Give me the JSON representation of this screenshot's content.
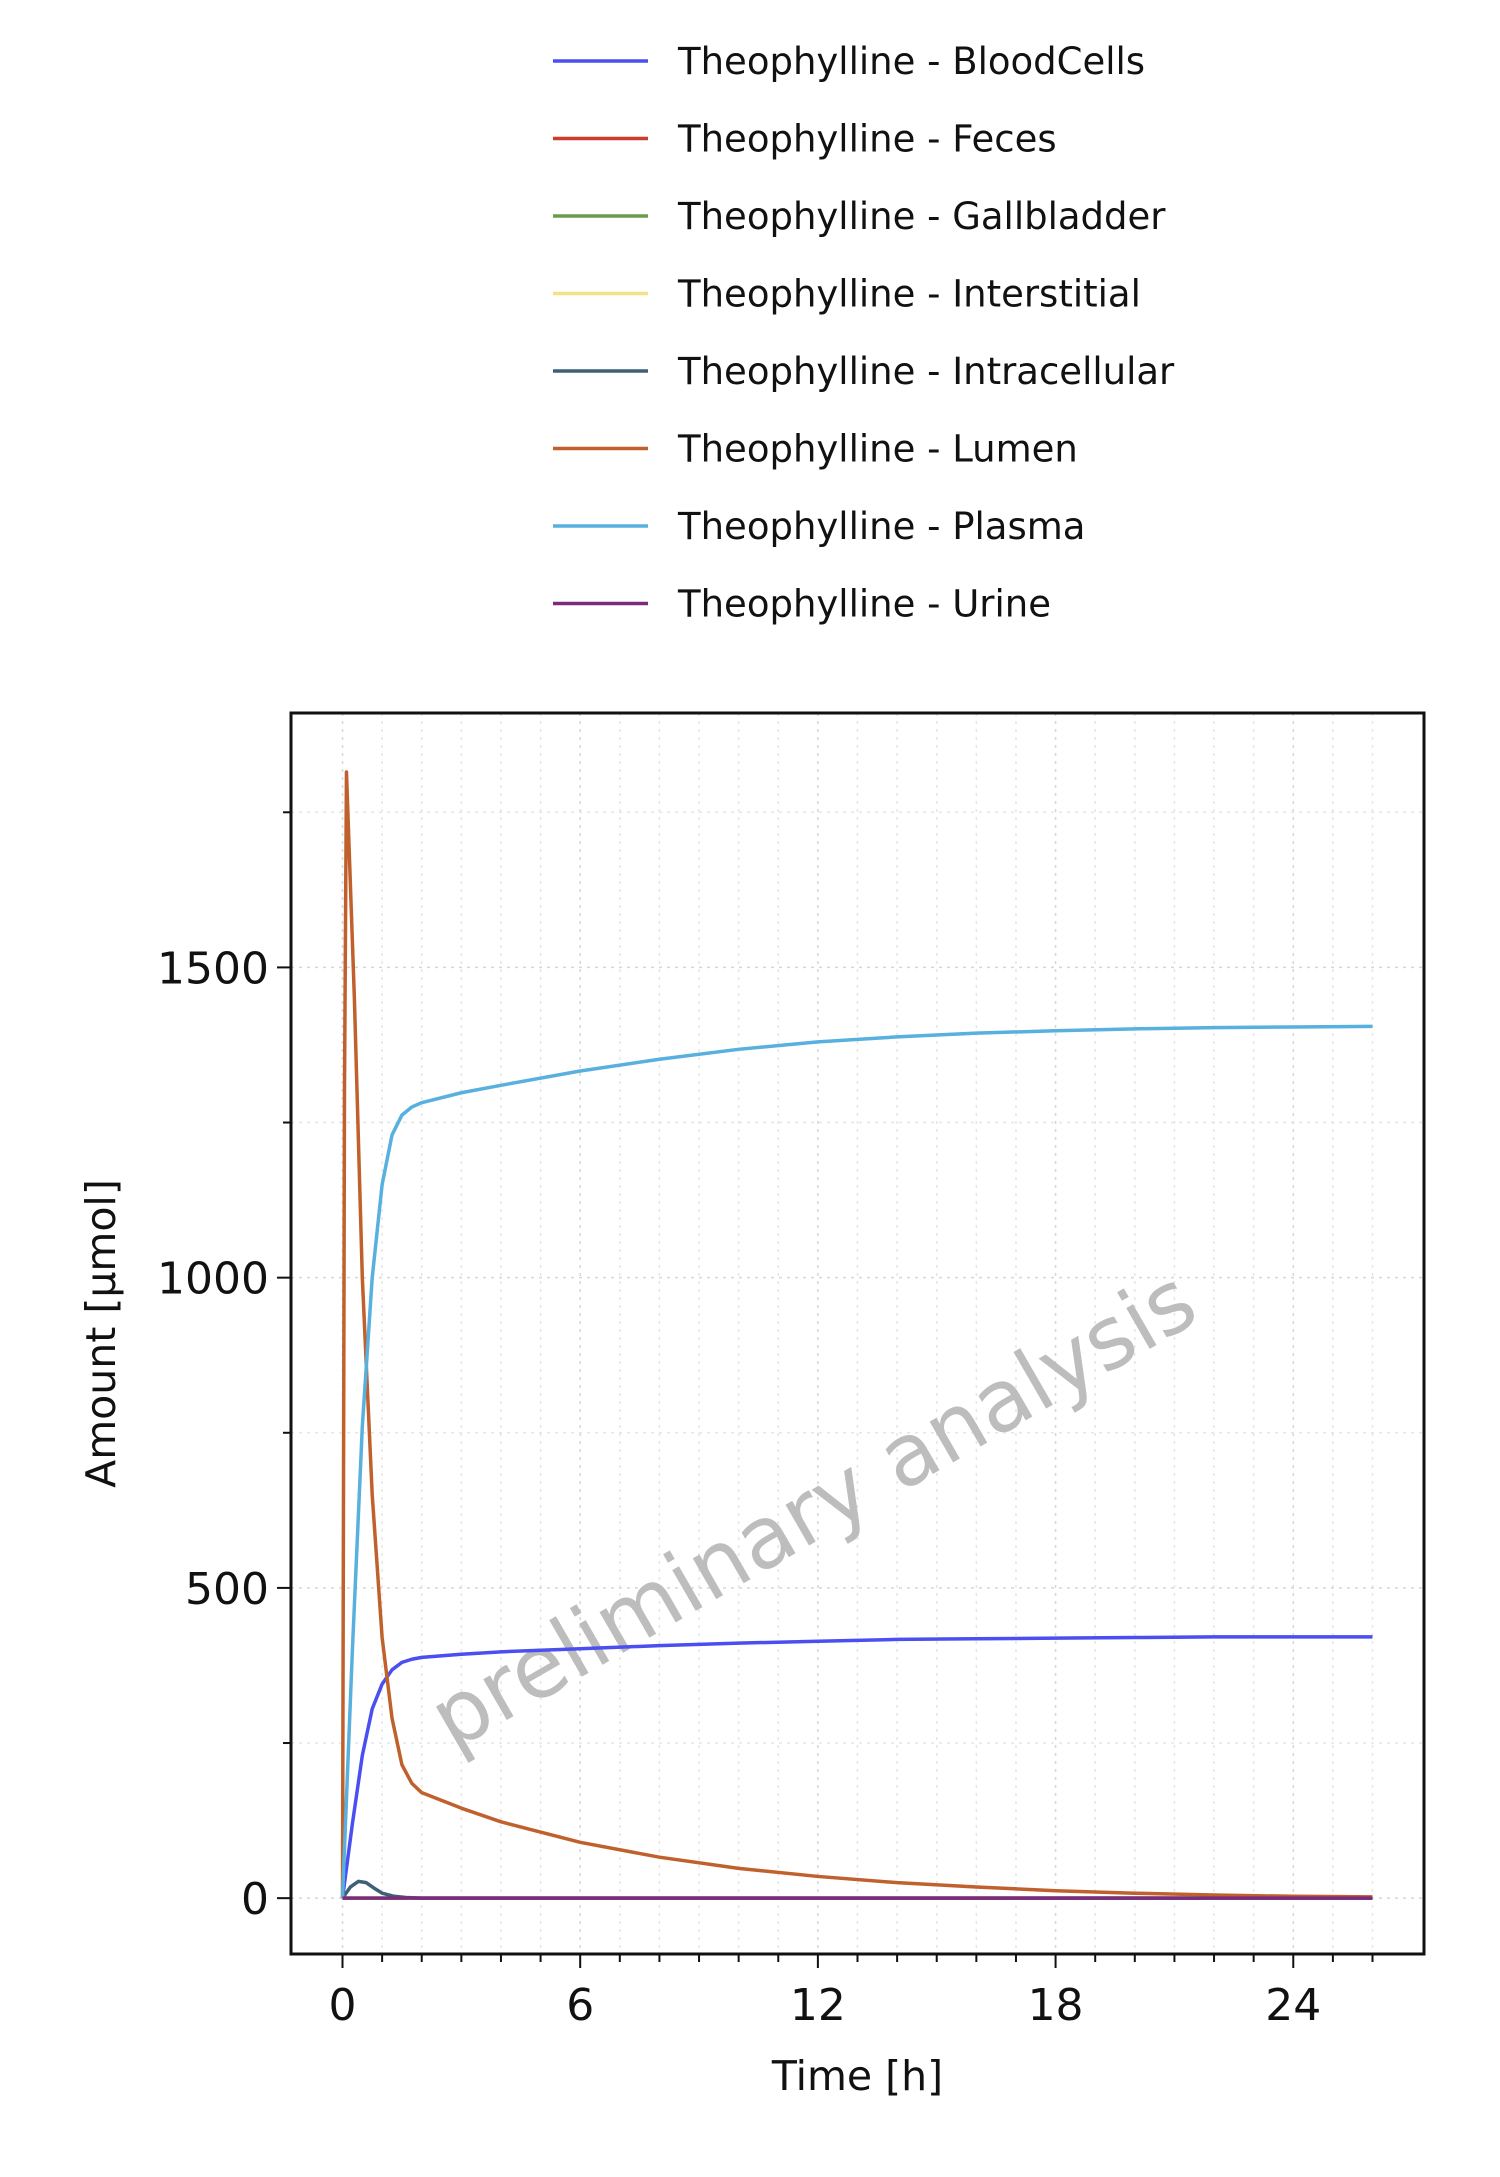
{
  "chart_data": {
    "type": "line",
    "title": "",
    "xlabel": "Time [h]",
    "ylabel": "Amount [µmol]",
    "xlim": [
      -1.3,
      27.3
    ],
    "ylim": [
      -90,
      1910
    ],
    "xticks": [
      0,
      6,
      12,
      18,
      24
    ],
    "yticks": [
      0,
      500,
      1000,
      1500
    ],
    "grid": true,
    "legend_position": "top",
    "watermark": "preliminary analysis",
    "series": [
      {
        "name": "Theophylline - BloodCells",
        "color": "#4b4ef0",
        "x": [
          0,
          0.25,
          0.5,
          0.75,
          1,
          1.25,
          1.5,
          1.75,
          2,
          3,
          4,
          6,
          8,
          10,
          12,
          14,
          16,
          18,
          20,
          22,
          24,
          26
        ],
        "y": [
          0,
          120,
          230,
          305,
          345,
          368,
          380,
          385,
          388,
          393,
          397,
          402,
          407,
          411,
          414,
          417,
          418,
          419,
          420,
          421,
          421,
          421
        ]
      },
      {
        "name": "Theophylline - Feces",
        "color": "#cc3d2e",
        "x": [
          0,
          6,
          12,
          18,
          24,
          26
        ],
        "y": [
          0,
          0,
          0,
          0,
          0,
          0
        ]
      },
      {
        "name": "Theophylline - Gallbladder",
        "color": "#6c9b4e",
        "x": [
          0,
          6,
          12,
          18,
          24,
          26
        ],
        "y": [
          0,
          0,
          0,
          0,
          0,
          0
        ]
      },
      {
        "name": "Theophylline - Interstitial",
        "color": "#f2e285",
        "x": [
          0,
          6,
          12,
          18,
          24,
          26
        ],
        "y": [
          0,
          0,
          0,
          0,
          0,
          0
        ]
      },
      {
        "name": "Theophylline - Intracellular",
        "color": "#3e6075",
        "x": [
          0,
          0.2,
          0.4,
          0.6,
          0.8,
          1.0,
          1.3,
          1.6,
          2,
          3,
          6,
          12,
          18,
          24,
          26
        ],
        "y": [
          0,
          18,
          27,
          25,
          16,
          8,
          3,
          1,
          0,
          0,
          0,
          0,
          0,
          0,
          0
        ]
      },
      {
        "name": "Theophylline - Lumen",
        "color": "#c0612d",
        "x": [
          0,
          0.05,
          0.1,
          0.3,
          0.5,
          0.75,
          1,
          1.25,
          1.5,
          1.75,
          2,
          3,
          4,
          6,
          8,
          10,
          12,
          14,
          16,
          18,
          20,
          22,
          24,
          26
        ],
        "y": [
          0,
          1300,
          1815,
          1450,
          1000,
          650,
          420,
          290,
          215,
          185,
          170,
          145,
          123,
          90,
          66,
          48,
          35,
          25,
          18,
          12,
          8,
          5,
          3,
          2
        ]
      },
      {
        "name": "Theophylline - Plasma",
        "color": "#58b0de",
        "x": [
          0,
          0.25,
          0.5,
          0.75,
          1,
          1.25,
          1.5,
          1.75,
          2,
          3,
          4,
          6,
          8,
          10,
          12,
          14,
          16,
          18,
          20,
          22,
          24,
          26
        ],
        "y": [
          0,
          400,
          760,
          1000,
          1150,
          1230,
          1262,
          1275,
          1282,
          1298,
          1310,
          1333,
          1352,
          1368,
          1380,
          1388,
          1394,
          1398,
          1401,
          1403,
          1404,
          1405
        ]
      },
      {
        "name": "Theophylline - Urine",
        "color": "#7b2a7d",
        "x": [
          0,
          6,
          12,
          18,
          24,
          26
        ],
        "y": [
          0,
          0,
          0,
          0,
          0,
          0
        ]
      }
    ]
  }
}
